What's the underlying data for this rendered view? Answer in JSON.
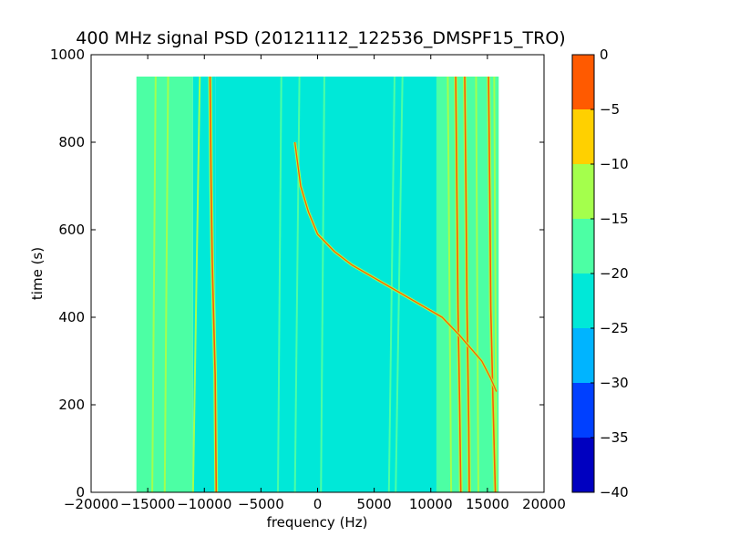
{
  "chart_data": {
    "type": "heatmap",
    "title": "400 MHz signal PSD (20121112_122536_DMSPF15_TRO)",
    "xlabel": "frequency (Hz)",
    "ylabel": "time (s)",
    "xlim": [
      -20000,
      20000
    ],
    "ylim": [
      0,
      1000
    ],
    "x_ticks": [
      -20000,
      -15000,
      -10000,
      -5000,
      0,
      5000,
      10000,
      15000,
      20000
    ],
    "y_ticks": [
      0,
      200,
      400,
      600,
      800,
      1000
    ],
    "data_extent": {
      "x": [
        -16000,
        16000
      ],
      "y": [
        0,
        950
      ]
    },
    "colorbar": {
      "levels": [
        -40,
        -35,
        -30,
        -25,
        -20,
        -15,
        -10,
        -5,
        0
      ],
      "colors": [
        "#0000c0",
        "#0040ff",
        "#00b4ff",
        "#00e8d8",
        "#4cffa4",
        "#a4ff4c",
        "#ffd000",
        "#ff5a00",
        "#c80000"
      ],
      "tick_labels": [
        "0",
        "−5",
        "−10",
        "−15",
        "−20",
        "−25",
        "−30",
        "−35",
        "−40"
      ]
    },
    "background_bands": [
      {
        "x": [
          -16000,
          -11000
        ],
        "level": -17.5
      },
      {
        "x": [
          -11000,
          -9000
        ],
        "level": -20
      },
      {
        "x": [
          -9000,
          10500
        ],
        "level": -22.5
      },
      {
        "x": [
          10500,
          16000
        ],
        "level": -17.5
      }
    ],
    "carrier_lines": [
      {
        "points": [
          [
            -9500,
            950
          ],
          [
            -9400,
            700
          ],
          [
            -9300,
            530
          ],
          [
            -9200,
            420
          ],
          [
            -9050,
            270
          ],
          [
            -8950,
            0
          ]
        ],
        "level": -2.5
      },
      {
        "points": [
          [
            12200,
            950
          ],
          [
            12300,
            700
          ],
          [
            12400,
            420
          ],
          [
            12550,
            200
          ],
          [
            12650,
            0
          ]
        ],
        "level": -2.5
      },
      {
        "points": [
          [
            13000,
            950
          ],
          [
            13100,
            700
          ],
          [
            13200,
            420
          ],
          [
            13350,
            150
          ],
          [
            13400,
            0
          ]
        ],
        "level": -2.5
      },
      {
        "points": [
          [
            15100,
            950
          ],
          [
            15200,
            700
          ],
          [
            15300,
            420
          ],
          [
            15500,
            200
          ],
          [
            15700,
            0
          ]
        ],
        "level": -2.5
      }
    ],
    "faint_lines": [
      {
        "x": [
          -14600,
          -14300
        ],
        "level": -12.5
      },
      {
        "x": [
          -13500,
          -13200
        ],
        "level": -12.5
      },
      {
        "x": [
          -11000,
          -10400
        ],
        "level": -12.5
      },
      {
        "x": [
          -3500,
          -3200
        ],
        "level": -17.5
      },
      {
        "x": [
          -2000,
          -1600
        ],
        "level": -17.5
      },
      {
        "x": [
          300,
          600
        ],
        "level": -17.5
      },
      {
        "x": [
          6300,
          6800
        ],
        "level": -17.5
      },
      {
        "x": [
          6900,
          7500
        ],
        "level": -17.5
      },
      {
        "x": [
          11800,
          11500
        ],
        "level": -12.5
      },
      {
        "x": [
          14200,
          14000
        ],
        "level": -12.5
      },
      {
        "x": [
          15800,
          15600
        ],
        "level": -12.5
      }
    ],
    "doppler_curve": {
      "points": [
        [
          -2000,
          800
        ],
        [
          -1500,
          700
        ],
        [
          -800,
          640
        ],
        [
          0,
          590
        ],
        [
          1500,
          550
        ],
        [
          3000,
          520
        ],
        [
          5000,
          490
        ],
        [
          7000,
          460
        ],
        [
          9000,
          430
        ],
        [
          11000,
          400
        ],
        [
          12500,
          360
        ],
        [
          13500,
          330
        ],
        [
          14500,
          300
        ],
        [
          15300,
          260
        ],
        [
          15800,
          230
        ]
      ],
      "level": -2.5
    }
  }
}
